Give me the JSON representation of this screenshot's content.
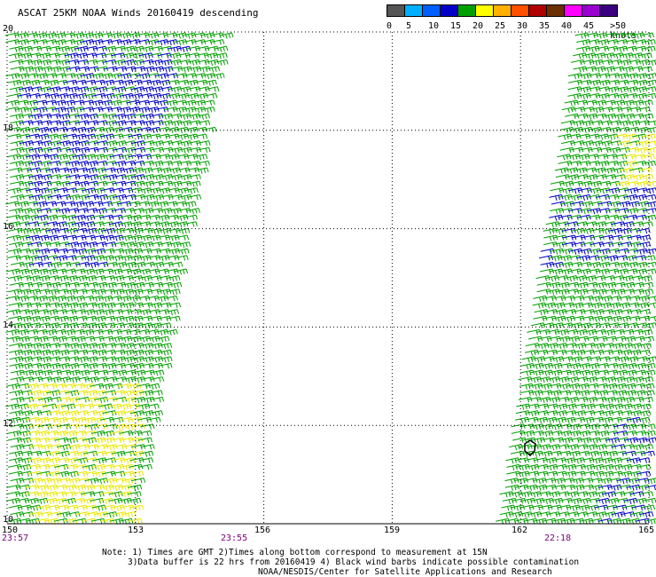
{
  "title": "ASCAT 25KM NOAA Winds 20160419 descending",
  "legend": {
    "colors": [
      "#555555",
      "#00b0ff",
      "#0060ff",
      "#0000c8",
      "#00a000",
      "#ffff00",
      "#ffb000",
      "#ff5000",
      "#b00000",
      "#6a3000",
      "#ff00ff",
      "#9a00d0",
      "#3a0080"
    ],
    "labels": [
      "0",
      "5",
      "10",
      "15",
      "20",
      "25",
      "30",
      "35",
      "40",
      "45",
      ">50 knots"
    ]
  },
  "axes": {
    "lat_labels": [
      "20",
      "18",
      "16",
      "14",
      "12",
      "10"
    ],
    "lon_labels": [
      "150",
      "153",
      "156",
      "159",
      "162",
      "165"
    ],
    "lat_range": [
      10,
      20
    ],
    "lon_range": [
      150,
      165
    ]
  },
  "pass_times": [
    "23:57",
    "23:55",
    "22:18"
  ],
  "notes": [
    "Note: 1) Times are GMT 2)Times along bottom correspond to measurement at 15N",
    "3)Data buffer is 22 hrs from 20160419 4) Black wind barbs indicate possible contamination",
    "NOAA/NESDIS/Center for Satellite Applications and Research"
  ],
  "colors": {
    "barb_green": "#00a000",
    "barb_blue": "#0000c8",
    "barb_yellow": "#e8e800",
    "barb_black": "#000000",
    "grid": "#000000"
  }
}
